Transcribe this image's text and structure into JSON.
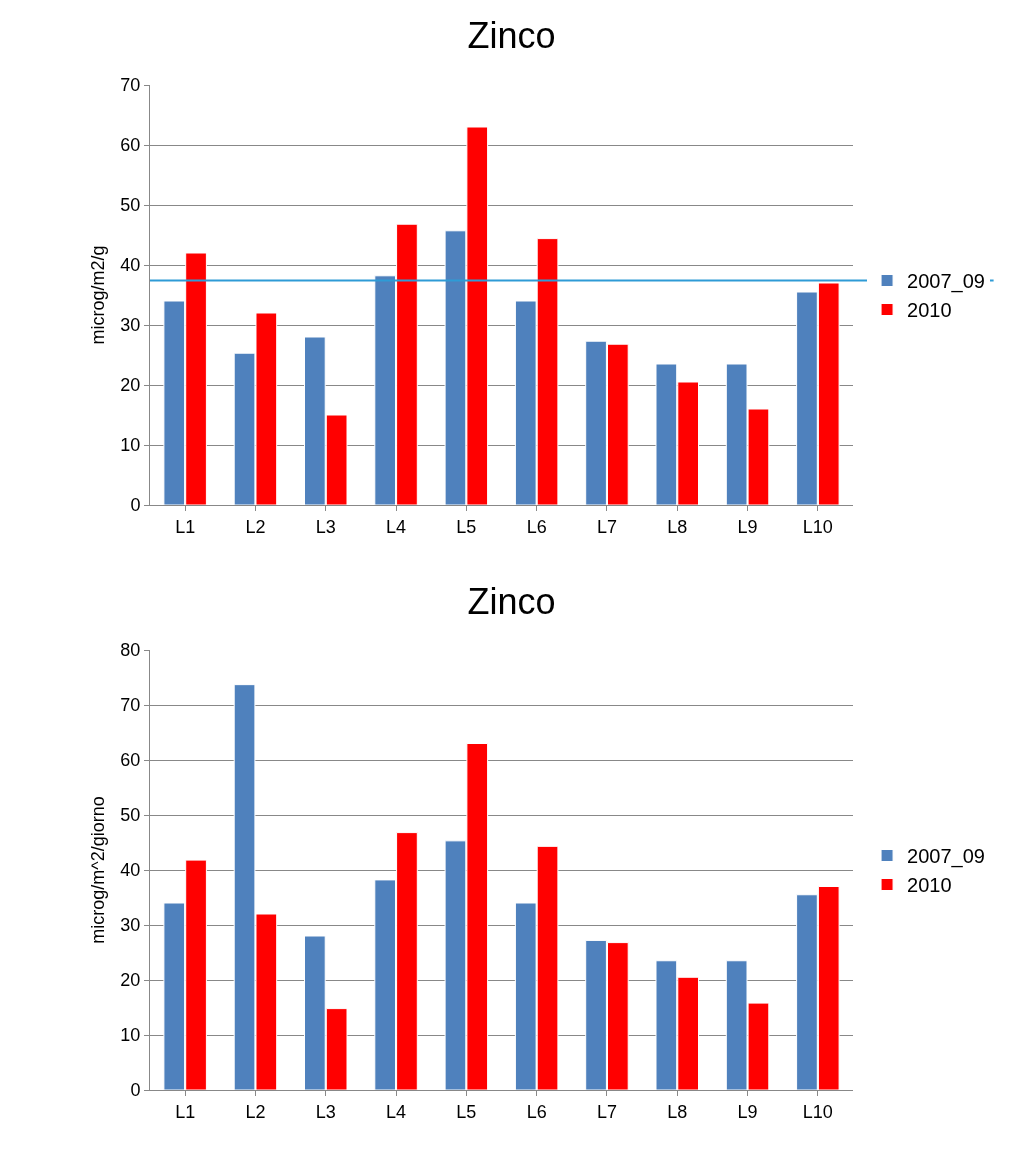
{
  "chart_data": [
    {
      "type": "bar",
      "title": "Zinco",
      "ylabel": "microg/m2/g",
      "categories": [
        "L1",
        "L2",
        "L3",
        "L4",
        "L5",
        "L6",
        "L7",
        "L8",
        "L9",
        "L10"
      ],
      "series": [
        {
          "name": "2007_09",
          "color": "#4f81bd",
          "values": [
            34,
            25.3,
            28,
            38.2,
            45.7,
            34,
            27.3,
            23.5,
            23.5,
            35.5
          ]
        },
        {
          "name": "2010",
          "color": "#ff0000",
          "values": [
            42,
            32,
            15,
            46.8,
            63,
            44.4,
            26.8,
            20.5,
            16,
            37
          ]
        }
      ],
      "ylim": [
        0,
        70
      ],
      "yticks": [
        0,
        10,
        20,
        30,
        40,
        50,
        60,
        70
      ],
      "grid": "y",
      "legend": "right",
      "ref_lines": [
        {
          "axis": "y",
          "value": 37.4,
          "color": "#2e9bd6",
          "line_style": "solid"
        }
      ]
    },
    {
      "type": "bar",
      "title": "Zinco",
      "ylabel": "microg/m^2/giorno",
      "categories": [
        "L1",
        "L2",
        "L3",
        "L4",
        "L5",
        "L6",
        "L7",
        "L8",
        "L9",
        "L10"
      ],
      "series": [
        {
          "name": "2007_09",
          "color": "#4f81bd",
          "values": [
            34,
            73.7,
            28,
            38.2,
            45.3,
            34,
            27.2,
            23.5,
            23.5,
            35.5
          ]
        },
        {
          "name": "2010",
          "color": "#ff0000",
          "values": [
            41.8,
            32,
            14.8,
            46.8,
            63,
            44.3,
            26.8,
            20.5,
            15.8,
            37
          ]
        }
      ],
      "ylim": [
        0,
        80
      ],
      "yticks": [
        0,
        10,
        20,
        30,
        40,
        50,
        60,
        70,
        80
      ],
      "grid": "y",
      "legend": "right"
    }
  ]
}
